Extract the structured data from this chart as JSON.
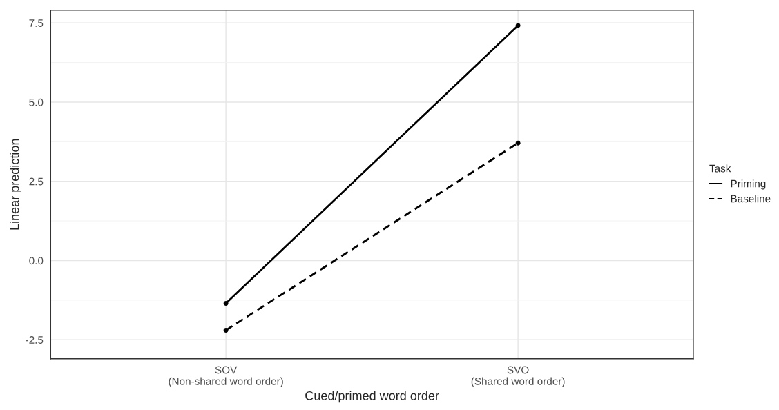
{
  "chart_data": {
    "type": "line",
    "xlabel": "Cued/primed word order",
    "ylabel": "Linear prediction",
    "legend_title": "Task",
    "categories": [
      "SOV\n(Non-shared word order)",
      "SVO\n(Shared word order)"
    ],
    "series": [
      {
        "name": "Priming",
        "color": "#000000",
        "values": [
          -1.35,
          7.42
        ],
        "line_style": "solid"
      },
      {
        "name": "Baseline",
        "color": "#000000",
        "values": [
          -2.2,
          3.71
        ],
        "line_style": "dashed"
      }
    ],
    "ylim": [
      -3.1,
      7.9
    ],
    "yticks": [
      {
        "value": -2.5,
        "label": "-2.5"
      },
      {
        "value": -1.25,
        "label": null
      },
      {
        "value": 0,
        "label": "0.0"
      },
      {
        "value": 1.25,
        "label": null
      },
      {
        "value": 2.5,
        "label": "2.5"
      },
      {
        "value": 3.75,
        "label": null
      },
      {
        "value": 5,
        "label": "5.0"
      },
      {
        "value": 6.25,
        "label": null
      },
      {
        "value": 7.5,
        "label": "7.5"
      }
    ],
    "grid": true,
    "legend": "right",
    "marker": "circle"
  }
}
